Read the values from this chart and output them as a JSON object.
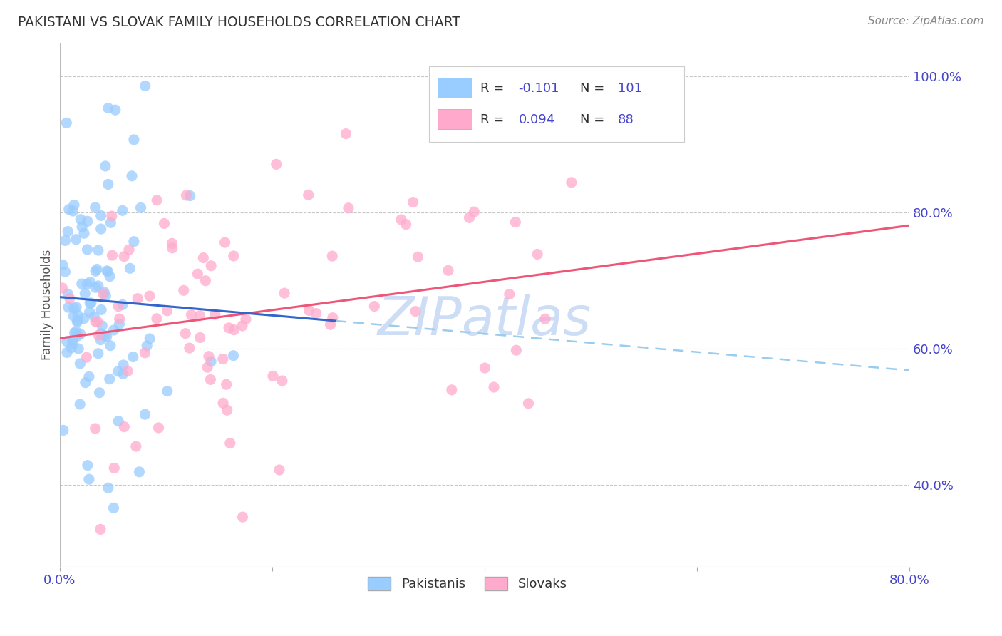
{
  "title": "PAKISTANI VS SLOVAK FAMILY HOUSEHOLDS CORRELATION CHART",
  "source": "Source: ZipAtlas.com",
  "ylabel": "Family Households",
  "ytick_labels": [
    "40.0%",
    "60.0%",
    "80.0%",
    "100.0%"
  ],
  "ytick_values": [
    0.4,
    0.6,
    0.8,
    1.0
  ],
  "legend_label1": "Pakistanis",
  "legend_label2": "Slovaks",
  "r_pakistani": -0.101,
  "n_pakistani": 101,
  "r_slovak": 0.094,
  "n_slovak": 88,
  "color_pakistani": "#99ccff",
  "color_slovak": "#ffaacc",
  "trendline_pakistani_solid": "#3366cc",
  "trendline_pakistani_dash": "#99ccee",
  "trendline_slovak": "#ee5577",
  "background_color": "#ffffff",
  "grid_color": "#bbbbbb",
  "title_color": "#333333",
  "axis_color": "#4444cc",
  "watermark_color": "#ccddf5",
  "xlim": [
    0.0,
    0.8
  ],
  "ylim": [
    0.28,
    1.05
  ],
  "seed_pakistani": 42,
  "seed_slovak": 123
}
